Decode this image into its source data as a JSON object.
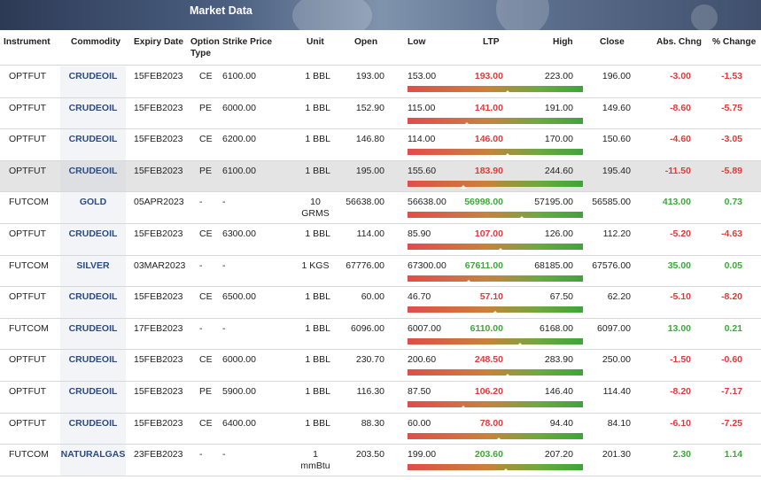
{
  "banner": {
    "title": "Market Data"
  },
  "headers": {
    "instrument": "Instrument",
    "commodity": "Commodity",
    "expiry": "Expiry Date",
    "option": "Option Type",
    "strike": "Strike Price",
    "unit": "Unit",
    "open": "Open",
    "low": "Low",
    "ltp": "LTP",
    "high": "High",
    "close": "Close",
    "abs": "Abs. Chng",
    "pct": "% Change"
  },
  "colors": {
    "negative": "#e0393a",
    "positive": "#3ea83b",
    "commodity": "#2b4b82"
  },
  "rows": [
    {
      "instrument": "OPTFUT",
      "commodity": "CRUDEOIL",
      "expiry": "15FEB2023",
      "option": "CE",
      "strike": "6100.00",
      "unit": "1 BBL",
      "open": "193.00",
      "low": "153.00",
      "ltp": "193.00",
      "high": "223.00",
      "close": "196.00",
      "abs": "-3.00",
      "pct": "-1.53",
      "dir": "neg",
      "pos": 0.57,
      "highlight": false
    },
    {
      "instrument": "OPTFUT",
      "commodity": "CRUDEOIL",
      "expiry": "15FEB2023",
      "option": "PE",
      "strike": "6000.00",
      "unit": "1 BBL",
      "open": "152.90",
      "low": "115.00",
      "ltp": "141.00",
      "high": "191.00",
      "close": "149.60",
      "abs": "-8.60",
      "pct": "-5.75",
      "dir": "neg",
      "pos": 0.34,
      "highlight": false
    },
    {
      "instrument": "OPTFUT",
      "commodity": "CRUDEOIL",
      "expiry": "15FEB2023",
      "option": "CE",
      "strike": "6200.00",
      "unit": "1 BBL",
      "open": "146.80",
      "low": "114.00",
      "ltp": "146.00",
      "high": "170.00",
      "close": "150.60",
      "abs": "-4.60",
      "pct": "-3.05",
      "dir": "neg",
      "pos": 0.57,
      "highlight": false
    },
    {
      "instrument": "OPTFUT",
      "commodity": "CRUDEOIL",
      "expiry": "15FEB2023",
      "option": "PE",
      "strike": "6100.00",
      "unit": "1 BBL",
      "open": "195.00",
      "low": "155.60",
      "ltp": "183.90",
      "high": "244.60",
      "close": "195.40",
      "abs": "-11.50",
      "pct": "-5.89",
      "dir": "neg",
      "pos": 0.32,
      "highlight": true
    },
    {
      "instrument": "FUTCOM",
      "commodity": "GOLD",
      "expiry": "05APR2023",
      "option": "-",
      "strike": "-",
      "unit": "10 GRMS",
      "open": "56638.00",
      "low": "56638.00",
      "ltp": "56998.00",
      "high": "57195.00",
      "close": "56585.00",
      "abs": "413.00",
      "pct": "0.73",
      "dir": "pos",
      "pos": 0.65,
      "highlight": false
    },
    {
      "instrument": "OPTFUT",
      "commodity": "CRUDEOIL",
      "expiry": "15FEB2023",
      "option": "CE",
      "strike": "6300.00",
      "unit": "1 BBL",
      "open": "114.00",
      "low": "85.90",
      "ltp": "107.00",
      "high": "126.00",
      "close": "112.20",
      "abs": "-5.20",
      "pct": "-4.63",
      "dir": "neg",
      "pos": 0.53,
      "highlight": false
    },
    {
      "instrument": "FUTCOM",
      "commodity": "SILVER",
      "expiry": "03MAR2023",
      "option": "-",
      "strike": "-",
      "unit": "1 KGS",
      "open": "67776.00",
      "low": "67300.00",
      "ltp": "67611.00",
      "high": "68185.00",
      "close": "67576.00",
      "abs": "35.00",
      "pct": "0.05",
      "dir": "pos",
      "pos": 0.35,
      "highlight": false
    },
    {
      "instrument": "OPTFUT",
      "commodity": "CRUDEOIL",
      "expiry": "15FEB2023",
      "option": "CE",
      "strike": "6500.00",
      "unit": "1 BBL",
      "open": "60.00",
      "low": "46.70",
      "ltp": "57.10",
      "high": "67.50",
      "close": "62.20",
      "abs": "-5.10",
      "pct": "-8.20",
      "dir": "neg",
      "pos": 0.5,
      "highlight": false
    },
    {
      "instrument": "FUTCOM",
      "commodity": "CRUDEOIL",
      "expiry": "17FEB2023",
      "option": "-",
      "strike": "-",
      "unit": "1 BBL",
      "open": "6096.00",
      "low": "6007.00",
      "ltp": "6110.00",
      "high": "6168.00",
      "close": "6097.00",
      "abs": "13.00",
      "pct": "0.21",
      "dir": "pos",
      "pos": 0.64,
      "highlight": false
    },
    {
      "instrument": "OPTFUT",
      "commodity": "CRUDEOIL",
      "expiry": "15FEB2023",
      "option": "CE",
      "strike": "6000.00",
      "unit": "1 BBL",
      "open": "230.70",
      "low": "200.60",
      "ltp": "248.50",
      "high": "283.90",
      "close": "250.00",
      "abs": "-1.50",
      "pct": "-0.60",
      "dir": "neg",
      "pos": 0.57,
      "highlight": false
    },
    {
      "instrument": "OPTFUT",
      "commodity": "CRUDEOIL",
      "expiry": "15FEB2023",
      "option": "PE",
      "strike": "5900.00",
      "unit": "1 BBL",
      "open": "116.30",
      "low": "87.50",
      "ltp": "106.20",
      "high": "146.40",
      "close": "114.40",
      "abs": "-8.20",
      "pct": "-7.17",
      "dir": "neg",
      "pos": 0.32,
      "highlight": false
    },
    {
      "instrument": "OPTFUT",
      "commodity": "CRUDEOIL",
      "expiry": "15FEB2023",
      "option": "CE",
      "strike": "6400.00",
      "unit": "1 BBL",
      "open": "88.30",
      "low": "60.00",
      "ltp": "78.00",
      "high": "94.40",
      "close": "84.10",
      "abs": "-6.10",
      "pct": "-7.25",
      "dir": "neg",
      "pos": 0.52,
      "highlight": false
    },
    {
      "instrument": "FUTCOM",
      "commodity": "NATURALGAS",
      "expiry": "23FEB2023",
      "option": "-",
      "strike": "-",
      "unit": "1 mmBtu",
      "open": "203.50",
      "low": "199.00",
      "ltp": "203.60",
      "high": "207.20",
      "close": "201.30",
      "abs": "2.30",
      "pct": "1.14",
      "dir": "pos",
      "pos": 0.56,
      "highlight": false
    }
  ]
}
